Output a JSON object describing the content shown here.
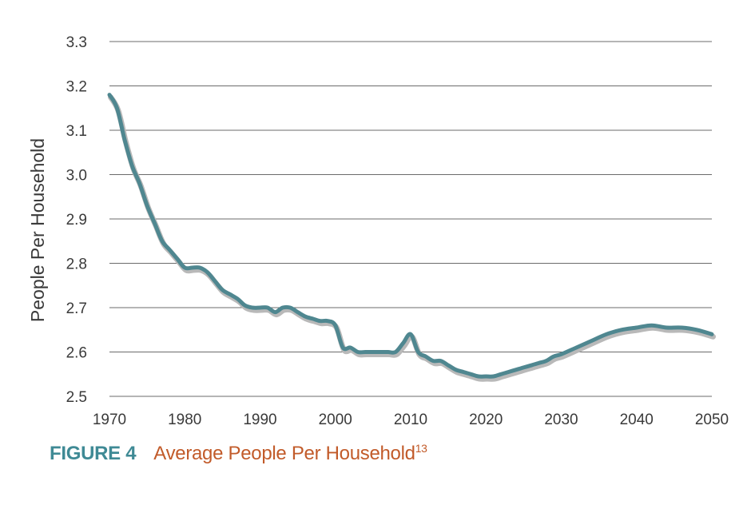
{
  "chart_data": {
    "type": "line",
    "title": "Average People Per Household",
    "ylabel": "People Per Household",
    "xlabel": "",
    "xlim": [
      1970,
      2050
    ],
    "ylim": [
      2.5,
      3.3
    ],
    "xticks": [
      "1970",
      "1980",
      "1990",
      "2000",
      "2010",
      "2020",
      "2030",
      "2040",
      "2050"
    ],
    "yticks": [
      "2.5",
      "2.6",
      "2.7",
      "2.8",
      "2.9",
      "3.0",
      "3.1",
      "3.2",
      "3.3"
    ],
    "grid": "horizontal",
    "line_color": "#4f8790",
    "shadow_color": "#b9b9b9",
    "series": [
      {
        "x": [
          1970,
          1971,
          1972,
          1973,
          1974,
          1975,
          1976,
          1977,
          1978,
          1979,
          1980,
          1981,
          1982,
          1983,
          1984,
          1985,
          1986,
          1987,
          1988,
          1989,
          1990,
          1991,
          1992,
          1993,
          1994,
          1995,
          1996,
          1997,
          1998,
          1999,
          2000,
          2001,
          2002,
          2003,
          2004,
          2005,
          2006,
          2007,
          2008,
          2009,
          2010,
          2011,
          2012,
          2013,
          2014,
          2015,
          2016,
          2017,
          2018,
          2019,
          2020,
          2021,
          2022,
          2023,
          2024,
          2025,
          2026,
          2027,
          2028,
          2029,
          2030,
          2032,
          2034,
          2036,
          2038,
          2040,
          2042,
          2044,
          2046,
          2048,
          2050
        ],
        "y": [
          3.18,
          3.15,
          3.08,
          3.02,
          2.98,
          2.93,
          2.89,
          2.85,
          2.83,
          2.81,
          2.79,
          2.79,
          2.79,
          2.78,
          2.76,
          2.74,
          2.73,
          2.72,
          2.705,
          2.7,
          2.7,
          2.7,
          2.69,
          2.7,
          2.7,
          2.69,
          2.68,
          2.675,
          2.67,
          2.67,
          2.66,
          2.61,
          2.61,
          2.6,
          2.6,
          2.6,
          2.6,
          2.6,
          2.6,
          2.62,
          2.64,
          2.6,
          2.59,
          2.58,
          2.58,
          2.57,
          2.56,
          2.555,
          2.55,
          2.545,
          2.545,
          2.545,
          2.55,
          2.555,
          2.56,
          2.565,
          2.57,
          2.575,
          2.58,
          2.59,
          2.595,
          2.61,
          2.625,
          2.64,
          2.65,
          2.655,
          2.66,
          2.655,
          2.655,
          2.65,
          2.64
        ]
      }
    ]
  },
  "caption": {
    "label": "FIGURE 4",
    "title": "Average People Per Household",
    "ref": "13"
  }
}
